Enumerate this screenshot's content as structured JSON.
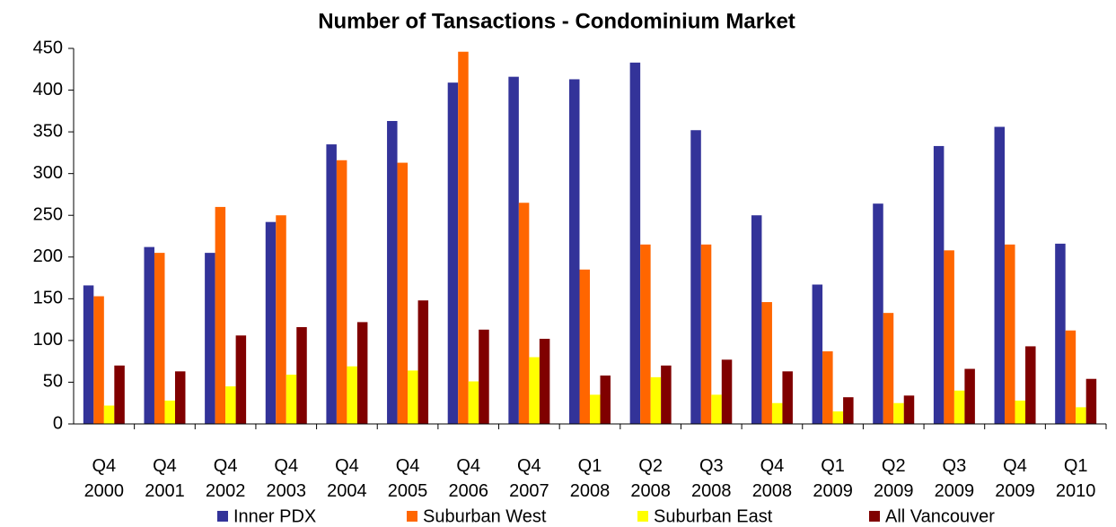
{
  "chart_data": {
    "type": "bar",
    "title": "Number of Tansactions - Condominium Market",
    "categories": [
      "Q4 2000",
      "Q4 2001",
      "Q4 2002",
      "Q4 2003",
      "Q4 2004",
      "Q4 2005",
      "Q4 2006",
      "Q4 2007",
      "Q1 2008",
      "Q2 2008",
      "Q3 2008",
      "Q4 2008",
      "Q1 2009",
      "Q2 2009",
      "Q3 2009",
      "Q4 2009",
      "Q1 2010"
    ],
    "series": [
      {
        "name": "Inner PDX",
        "color": "#333399",
        "values": [
          166,
          212,
          205,
          242,
          335,
          363,
          409,
          416,
          413,
          433,
          352,
          250,
          167,
          264,
          333,
          356,
          216
        ]
      },
      {
        "name": "Suburban West",
        "color": "#ff6600",
        "values": [
          153,
          205,
          260,
          250,
          316,
          313,
          446,
          265,
          185,
          215,
          215,
          146,
          87,
          133,
          208,
          215,
          112
        ]
      },
      {
        "name": "Suburban East",
        "color": "#ffff00",
        "values": [
          22,
          28,
          45,
          59,
          69,
          64,
          51,
          80,
          35,
          56,
          35,
          25,
          15,
          25,
          40,
          28,
          20
        ]
      },
      {
        "name": "All Vancouver",
        "color": "#800000",
        "values": [
          70,
          63,
          106,
          116,
          122,
          148,
          113,
          102,
          58,
          70,
          77,
          63,
          32,
          34,
          66,
          93,
          54
        ]
      }
    ],
    "ylim": [
      0,
      450
    ],
    "yticks": [
      0,
      50,
      100,
      150,
      200,
      250,
      300,
      350,
      400,
      450
    ],
    "grid": false,
    "legend": "bottom"
  }
}
